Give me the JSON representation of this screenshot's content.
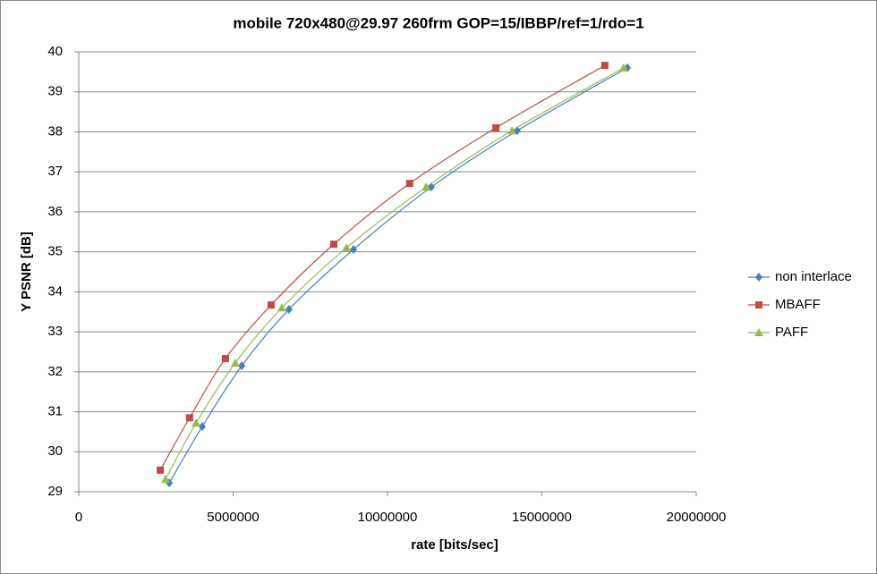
{
  "chart_data": {
    "type": "scatter",
    "title": "mobile 720x480@29.97  260frm GOP=15/IBBP/ref=1/rdo=1",
    "x_label": "rate [bits/sec]",
    "y_label": "Y PSNR [dB]",
    "xlim": [
      0,
      20000000
    ],
    "xticks": [
      0,
      5000000,
      10000000,
      15000000,
      20000000
    ],
    "ylim": [
      29,
      40
    ],
    "yticks": [
      29,
      30,
      31,
      32,
      33,
      34,
      35,
      36,
      37,
      38,
      39,
      40
    ],
    "grid": true,
    "smooth": true,
    "legend": "right",
    "series": [
      {
        "name": "non interlace",
        "color": "#4a7ebb",
        "marker": "diamond",
        "x": [
          2930000,
          4000000,
          5280000,
          6810000,
          8900000,
          11420000,
          14200000,
          17770000
        ],
        "values": [
          29.22,
          30.63,
          32.15,
          33.56,
          35.06,
          36.62,
          38.03,
          39.6
        ]
      },
      {
        "name": "MBAFF",
        "color": "#be4b48",
        "marker": "square",
        "x": [
          2640000,
          3590000,
          4750000,
          6230000,
          8260000,
          10720000,
          13510000,
          17040000
        ],
        "values": [
          29.54,
          30.85,
          32.33,
          33.67,
          35.19,
          36.71,
          38.1,
          39.66
        ]
      },
      {
        "name": "PAFF",
        "color": "#98b954",
        "marker": "triangle",
        "x": [
          2810000,
          3800000,
          5070000,
          6580000,
          8670000,
          11250000,
          14030000,
          17650000
        ],
        "values": [
          29.31,
          30.72,
          32.22,
          33.6,
          35.1,
          36.62,
          38.03,
          39.6
        ]
      }
    ]
  }
}
